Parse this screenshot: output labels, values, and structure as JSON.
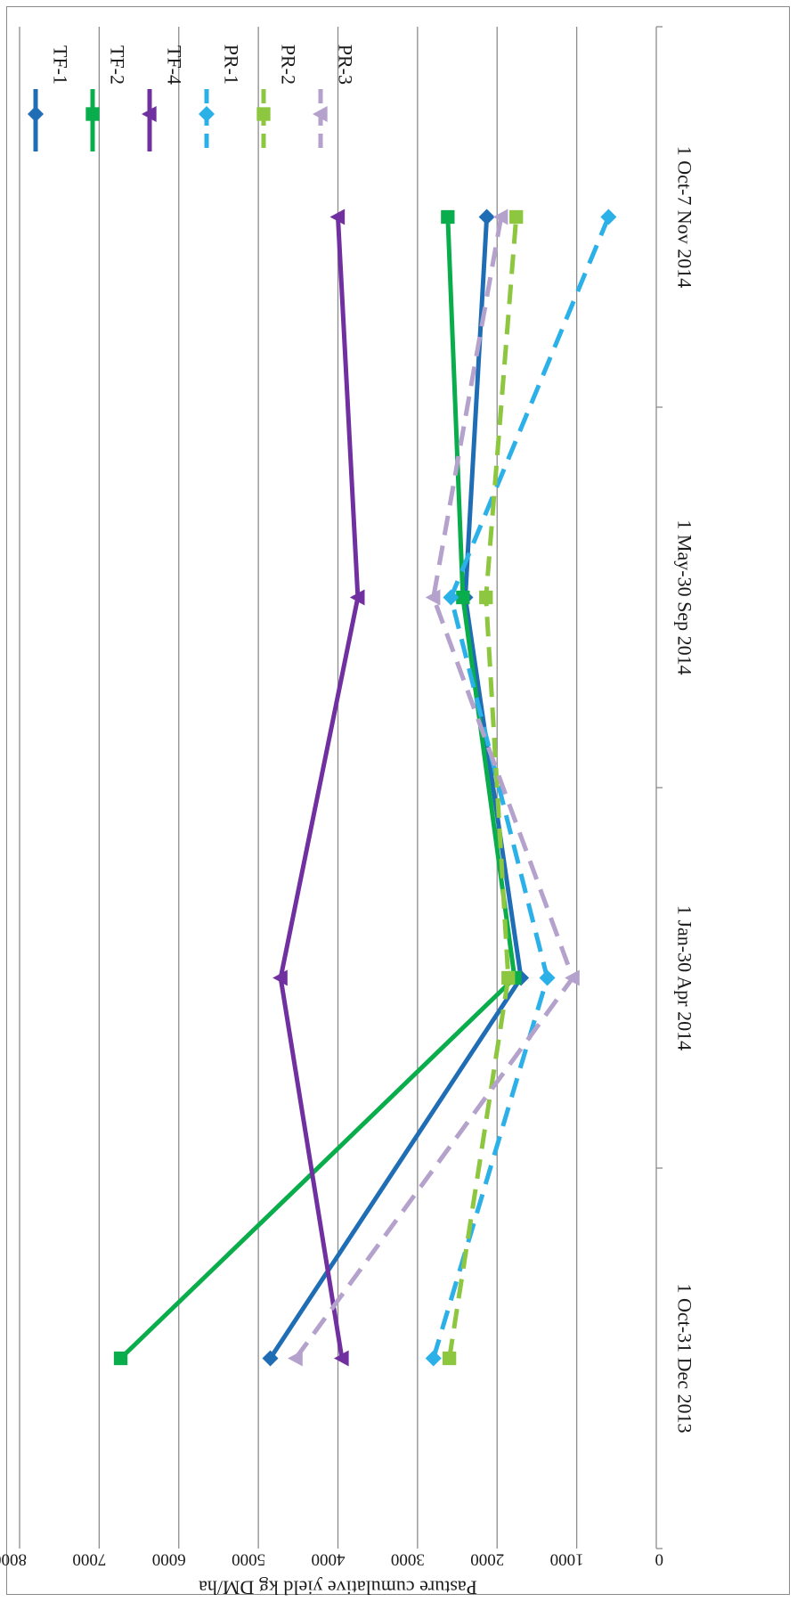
{
  "chart_data": {
    "type": "line",
    "orientation": "rotated-180",
    "title": "",
    "xlabel": "",
    "ylabel": "Pasture cumulative yield kg DM/ha",
    "ylim": [
      0,
      8000
    ],
    "yticks": [
      0,
      1000,
      2000,
      3000,
      4000,
      5000,
      6000,
      7000,
      8000
    ],
    "categories": [
      "1 Oct-31 Dec 2013",
      "1 Jan-30 Apr 2014",
      "1 May-30 Sep 2014",
      "1 Oct-7 Nov 2014"
    ],
    "grid": true,
    "legend_position": "top-right",
    "series": [
      {
        "name": "TF-1",
        "values": [
          4850,
          1700,
          2400,
          2130
        ],
        "color": "#1f6db5",
        "dash": false,
        "marker": "diamond"
      },
      {
        "name": "TF-2",
        "values": [
          6730,
          1780,
          2430,
          2620
        ],
        "color": "#0aad4b",
        "dash": false,
        "marker": "square"
      },
      {
        "name": "TF-4",
        "values": [
          3950,
          4720,
          3750,
          4000
        ],
        "color": "#7030a0",
        "dash": false,
        "marker": "triangle"
      },
      {
        "name": "PR-1",
        "values": [
          2800,
          1370,
          2580,
          600
        ],
        "color": "#2bb0e8",
        "dash": true,
        "marker": "diamond"
      },
      {
        "name": "PR-2",
        "values": [
          2600,
          1860,
          2140,
          1760
        ],
        "color": "#8dc63f",
        "dash": true,
        "marker": "square"
      },
      {
        "name": "PR-3",
        "values": [
          4530,
          1050,
          2800,
          1950
        ],
        "color": "#b4a1cc",
        "dash": true,
        "marker": "triangle"
      }
    ]
  }
}
